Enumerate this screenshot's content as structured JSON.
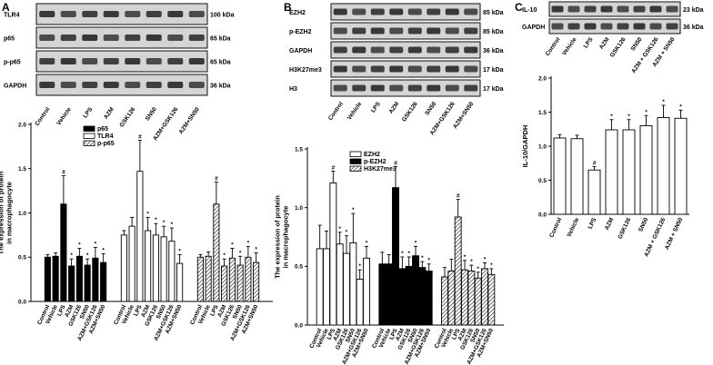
{
  "panel_labels": [
    "A",
    "B",
    "C"
  ],
  "blots": {
    "A": {
      "rows": [
        {
          "name": "TLR4",
          "kda": "100 kDa"
        },
        {
          "name": "p65",
          "kda": "65 kDa"
        },
        {
          "name": "p-p65",
          "kda": "65 kDa"
        },
        {
          "name": "GAPDH",
          "kda": "36 kDa"
        }
      ],
      "lanes": [
        "Control",
        "Vehicle",
        "LPS",
        "AZM",
        "GSK126",
        "SN50",
        "AZM+GSK126",
        "AZM+SN50"
      ]
    },
    "B": {
      "rows": [
        {
          "name": "EZH2",
          "kda": "85 kDa"
        },
        {
          "name": "p-EZH2",
          "kda": "85 kDa"
        },
        {
          "name": "GAPDH",
          "kda": "36 kDa"
        },
        {
          "name": "H3K27me3",
          "kda": "17 kDa"
        },
        {
          "name": "H3",
          "kda": "17 kDa"
        }
      ],
      "lanes": [
        "Control",
        "Vehicle",
        "LPS",
        "AZM",
        "GSK126",
        "SN50",
        "AZM+GSK126",
        "AZM+SN50"
      ]
    },
    "C": {
      "rows": [
        {
          "name": "IL-10",
          "kda": "23 kDa"
        },
        {
          "name": "GAPDH",
          "kda": "36 kDa"
        }
      ],
      "lanes": [
        "Control",
        "Vehicle",
        "LPS",
        "AZM",
        "GSK126",
        "SN50",
        "AZM + GSK126",
        "AZM + SN50"
      ]
    }
  },
  "colors": {
    "black": "#000000",
    "white": "#ffffff",
    "blot_bg": "#d9d9d9",
    "band": "#1a1a1a"
  },
  "chart_data": [
    {
      "type": "bar",
      "panel": "A",
      "ylabel": "The expression of protein\nin macrophagocyte",
      "ylim": [
        0,
        2.0
      ],
      "yticks": [
        0.0,
        0.5,
        1.0,
        1.5,
        2.0
      ],
      "categories": [
        "Control",
        "Vehicle",
        "LPS",
        "AZM",
        "GSK126",
        "SN50",
        "AZM+GSK126",
        "AZM+SN50"
      ],
      "series": [
        {
          "name": "p65",
          "fill": "black",
          "values": [
            0.5,
            0.51,
            1.1,
            0.4,
            0.51,
            0.41,
            0.49,
            0.44
          ],
          "errors": [
            0.03,
            0.04,
            0.32,
            0.08,
            0.09,
            0.07,
            0.12,
            0.1
          ],
          "marks": [
            "",
            "",
            "#",
            "*",
            "*",
            "*",
            "*",
            "*"
          ]
        },
        {
          "name": "TLR4",
          "fill": "white",
          "values": [
            0.75,
            0.85,
            1.47,
            0.8,
            0.75,
            0.73,
            0.68,
            0.43
          ],
          "errors": [
            0.05,
            0.1,
            0.35,
            0.15,
            0.13,
            0.12,
            0.15,
            0.1
          ],
          "marks": [
            "",
            "",
            "#",
            "*",
            "*",
            "*",
            "*",
            "*"
          ]
        },
        {
          "name": "p-p65",
          "fill": "hatch",
          "values": [
            0.5,
            0.51,
            1.1,
            0.4,
            0.49,
            0.41,
            0.5,
            0.44
          ],
          "errors": [
            0.03,
            0.05,
            0.25,
            0.08,
            0.11,
            0.1,
            0.12,
            0.11
          ],
          "marks": [
            "",
            "",
            "#",
            "*",
            "*",
            "*",
            "*",
            "*"
          ]
        }
      ]
    },
    {
      "type": "bar",
      "panel": "B",
      "ylabel": "The expression of protein\nin macrophagocyte",
      "ylim": [
        0,
        1.5
      ],
      "yticks": [
        0.0,
        0.5,
        1.0,
        1.5
      ],
      "categories": [
        "Control",
        "Vehicle",
        "LPS",
        "AZM",
        "GSK126",
        "SN50",
        "AZM+GSK126",
        "AZM+SN50"
      ],
      "series": [
        {
          "name": "EZH2",
          "fill": "white",
          "values": [
            0.65,
            0.65,
            1.21,
            0.69,
            0.61,
            0.7,
            0.39,
            0.57
          ],
          "errors": [
            0.2,
            0.15,
            0.1,
            0.1,
            0.15,
            0.25,
            0.08,
            0.1
          ],
          "marks": [
            "",
            "",
            "#",
            "*",
            "*",
            "*",
            "*",
            "*"
          ]
        },
        {
          "name": "p-EZH2",
          "fill": "black",
          "values": [
            0.52,
            0.52,
            1.17,
            0.48,
            0.5,
            0.59,
            0.49,
            0.46
          ],
          "errors": [
            0.1,
            0.08,
            0.18,
            0.1,
            0.08,
            0.08,
            0.05,
            0.06
          ],
          "marks": [
            "",
            "",
            "#",
            "*",
            "*",
            "*",
            "*",
            "*"
          ]
        },
        {
          "name": "H3K27me3",
          "fill": "hatch",
          "values": [
            0.41,
            0.46,
            0.92,
            0.47,
            0.46,
            0.4,
            0.48,
            0.43
          ],
          "errors": [
            0.08,
            0.1,
            0.15,
            0.08,
            0.05,
            0.05,
            0.05,
            0.05
          ],
          "marks": [
            "",
            "",
            "#",
            "*",
            "*",
            "*",
            "*",
            "*"
          ]
        }
      ]
    },
    {
      "type": "bar",
      "panel": "C",
      "ylabel": "IL-10/GAPDH",
      "ylim": [
        0,
        2.0
      ],
      "yticks": [
        0.0,
        0.5,
        1.0,
        1.5,
        2.0
      ],
      "categories": [
        "Control",
        "Vehicle",
        "LPS",
        "AZM",
        "GSK126",
        "SN50",
        "AZM + GSK126",
        "AZM + SN50"
      ],
      "series": [
        {
          "name": "",
          "fill": "white",
          "values": [
            1.12,
            1.11,
            0.65,
            1.24,
            1.24,
            1.3,
            1.42,
            1.41
          ],
          "errors": [
            0.05,
            0.05,
            0.05,
            0.15,
            0.15,
            0.15,
            0.18,
            0.12
          ],
          "marks": [
            "",
            "",
            "#",
            "*",
            "*",
            "*",
            "*",
            "*"
          ]
        }
      ]
    }
  ]
}
